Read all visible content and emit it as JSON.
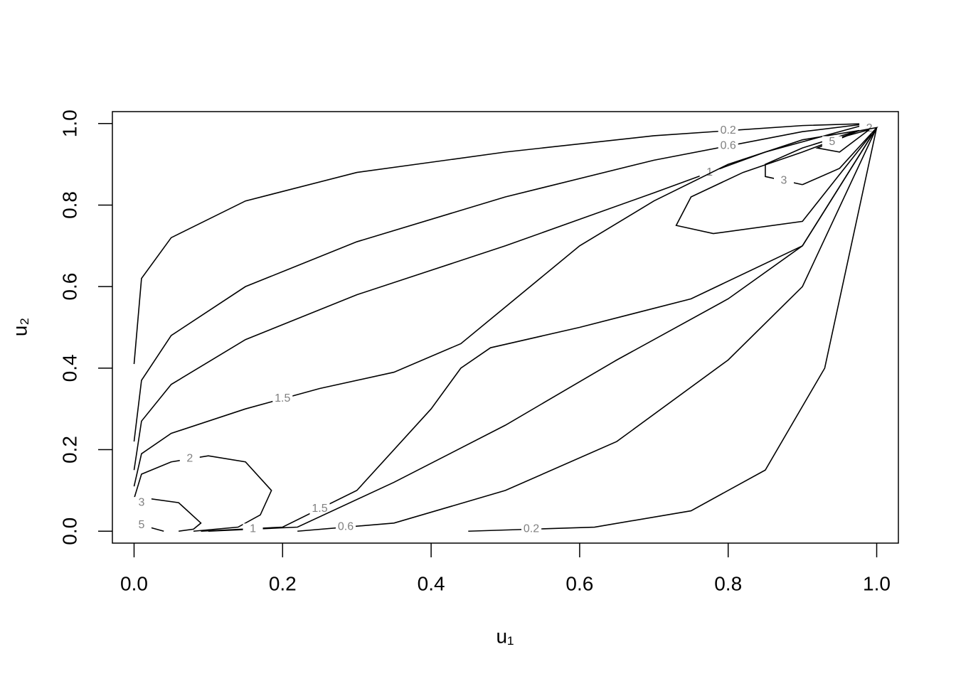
{
  "chart_data": {
    "type": "contour",
    "xlabel": "u₁",
    "ylabel": "u₂",
    "xlim": [
      -0.0292,
      1.0292
    ],
    "ylim": [
      -0.0292,
      1.0292
    ],
    "xticks": [
      {
        "value": 0,
        "label": "0.0"
      },
      0.2,
      0.4,
      0.6,
      0.8,
      {
        "value": 1,
        "label": "1.0"
      }
    ],
    "yticks": [
      {
        "value": 0,
        "label": "0.0"
      },
      0.2,
      0.4,
      0.6,
      0.8,
      {
        "value": 1,
        "label": "1.0"
      }
    ],
    "color": "#000000",
    "label_color": "#808080",
    "series": [
      {
        "name": "0.2",
        "x": [
          0,
          0.01,
          0.05,
          0.15,
          0.3,
          0.5,
          0.7,
          0.9,
          0.99
        ],
        "y": [
          0.41,
          0.62,
          0.72,
          0.81,
          0.88,
          0.93,
          0.97,
          0.995,
          1.0
        ]
      },
      {
        "name": "0.6",
        "x": [
          0,
          0.01,
          0.05,
          0.15,
          0.3,
          0.5,
          0.7,
          0.9,
          0.99
        ],
        "y": [
          0.22,
          0.37,
          0.48,
          0.6,
          0.71,
          0.82,
          0.91,
          0.98,
          1.0
        ]
      },
      {
        "name": "1",
        "x": [
          0,
          0.01,
          0.05,
          0.15,
          0.3,
          0.5,
          0.7,
          0.85,
          0.99
        ],
        "y": [
          0.15,
          0.27,
          0.36,
          0.47,
          0.58,
          0.7,
          0.83,
          0.93,
          1.0
        ]
      },
      {
        "name": "1.5",
        "x": [
          0,
          0.01,
          0.05,
          0.15,
          0.25,
          0.35,
          0.44,
          0.5,
          0.6,
          0.7,
          0.8,
          0.9,
          1.0
        ],
        "y": [
          0.11,
          0.19,
          0.24,
          0.3,
          0.35,
          0.39,
          0.46,
          0.55,
          0.7,
          0.81,
          0.9,
          0.96,
          0.99
        ]
      },
      {
        "name": "2",
        "x": [
          0,
          0.01,
          0.05,
          0.1,
          0.15,
          0.185,
          0.17,
          0.14,
          0.08
        ],
        "y": [
          0.08,
          0.14,
          0.17,
          0.185,
          0.17,
          0.1,
          0.04,
          0.01,
          0.0
        ]
      },
      {
        "name": "3",
        "x": [
          0,
          0.02,
          0.06,
          0.09,
          0.08,
          0.06
        ],
        "y": [
          0.06,
          0.08,
          0.07,
          0.02,
          0.005,
          0.0
        ]
      },
      {
        "name": "5",
        "x": [
          0,
          0.02,
          0.04
        ],
        "y": [
          0.02,
          0.01,
          0.0
        ]
      },
      {
        "name": "2",
        "x": [
          1.0,
          0.9,
          0.78,
          0.73,
          0.75,
          0.82,
          0.9,
          0.98,
          1.0
        ],
        "y": [
          0.99,
          0.76,
          0.73,
          0.75,
          0.82,
          0.88,
          0.93,
          0.985,
          0.99
        ]
      },
      {
        "name": "3",
        "x": [
          0.9,
          0.85,
          0.85,
          0.9,
          0.97,
          1.0,
          0.95,
          0.9
        ],
        "y": [
          0.85,
          0.87,
          0.9,
          0.94,
          0.98,
          0.99,
          0.89,
          0.85
        ]
      },
      {
        "name": "5",
        "x": [
          0.99,
          0.95,
          0.92,
          0.96,
          0.99
        ],
        "y": [
          0.985,
          0.93,
          0.94,
          0.97,
          0.985
        ]
      },
      {
        "name": "1.5",
        "x": [
          0.09,
          0.2,
          0.3,
          0.4,
          0.44,
          0.48,
          0.6,
          0.75,
          0.9,
          1.0
        ],
        "y": [
          0.0,
          0.01,
          0.1,
          0.3,
          0.4,
          0.45,
          0.5,
          0.57,
          0.7,
          0.99
        ]
      },
      {
        "name": "1",
        "x": [
          0.1,
          0.22,
          0.35,
          0.5,
          0.65,
          0.8,
          0.9,
          1.0
        ],
        "y": [
          0.0,
          0.01,
          0.12,
          0.26,
          0.42,
          0.57,
          0.7,
          0.99
        ]
      },
      {
        "name": "0.6",
        "x": [
          0.22,
          0.35,
          0.5,
          0.65,
          0.8,
          0.9,
          1.0
        ],
        "y": [
          0.0,
          0.02,
          0.1,
          0.22,
          0.42,
          0.6,
          0.99
        ]
      },
      {
        "name": "0.2",
        "x": [
          0.45,
          0.62,
          0.75,
          0.85,
          0.93,
          1.0
        ],
        "y": [
          0.0,
          0.01,
          0.05,
          0.15,
          0.4,
          0.99
        ]
      }
    ]
  }
}
